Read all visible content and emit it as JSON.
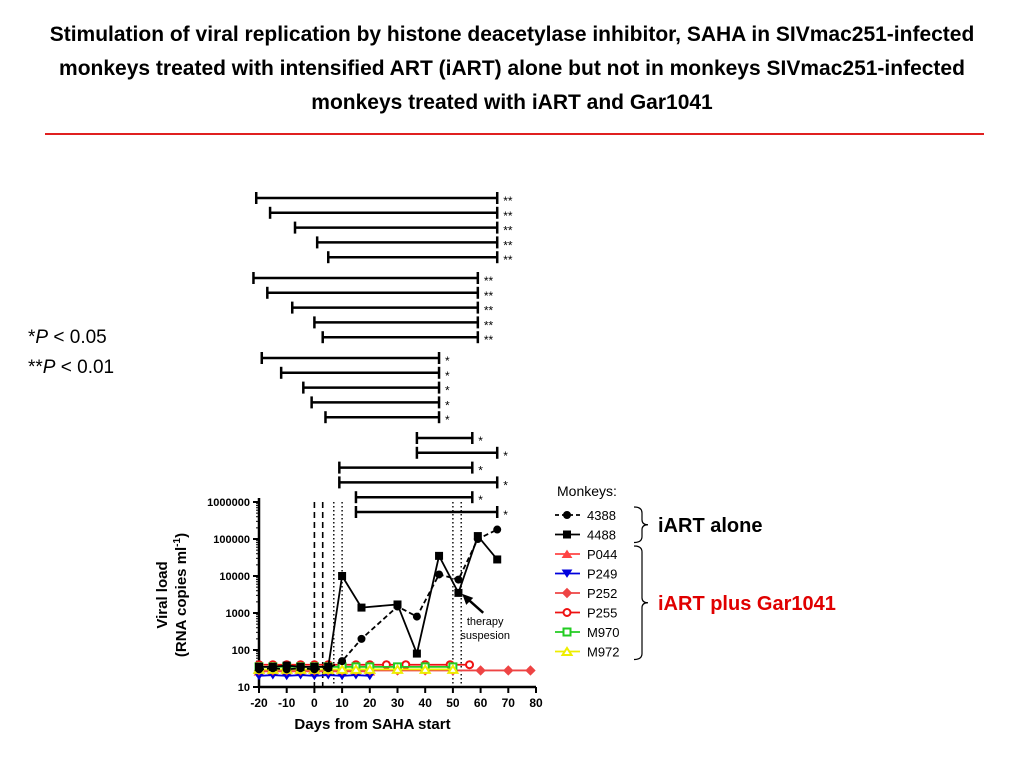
{
  "title": "Stimulation of viral replication by histone deacetylase inhibitor, SAHA in SIVmac251-infected monkeys treated with intensified ART (iART) alone but not in monkeys SIVmac251-infected monkeys treated with iART and Gar1041",
  "colors": {
    "rule": "#e02020",
    "iart_alone_label": "#000000",
    "iart_plus_label": "#e00000"
  },
  "significance_key": {
    "single": {
      "stars": "*",
      "p": "P",
      "rest": " < 0.05"
    },
    "double": {
      "stars": "**",
      "p": "P",
      "rest": " < 0.01"
    }
  },
  "chart_data": {
    "type": "line",
    "xlabel": "Days from SAHA start",
    "ylabel": "Viral load",
    "ylabel_units": "(RNA copies ml",
    "ylabel_sup": "-1",
    "ylabel_close": ")",
    "xlim": [
      -20,
      80
    ],
    "ylim": [
      10,
      1000000
    ],
    "y_scale": "log",
    "xticks": [
      -20,
      -10,
      0,
      10,
      20,
      30,
      40,
      50,
      60,
      70,
      80
    ],
    "xtick_labels": [
      "-20",
      "-10",
      "0",
      "10",
      "20",
      "30",
      "40",
      "50",
      "60",
      "70",
      "80"
    ],
    "yticks": [
      10,
      100,
      1000,
      10000,
      100000,
      1000000
    ],
    "ytick_labels": [
      "10",
      "100",
      "1000",
      "10000",
      "100000",
      "1000000"
    ],
    "dashed_vlines": [
      0,
      3
    ],
    "dotted_vlines": [
      7,
      10,
      50,
      53
    ],
    "legend_title": "Monkeys:",
    "series": [
      {
        "name": "4388",
        "color": "#000000",
        "marker": "circle",
        "dash": "dashed",
        "x": [
          -20,
          -15,
          -10,
          -5,
          0,
          5,
          10,
          17,
          30,
          37,
          45,
          52,
          59,
          66
        ],
        "y": [
          30,
          32,
          30,
          32,
          30,
          32,
          50,
          200,
          1500,
          800,
          11000,
          8000,
          100000,
          180000
        ]
      },
      {
        "name": "4488",
        "color": "#000000",
        "marker": "square",
        "dash": "solid",
        "x": [
          -20,
          -15,
          -10,
          -5,
          0,
          5,
          10,
          17,
          30,
          37,
          45,
          52,
          59,
          66
        ],
        "y": [
          35,
          35,
          38,
          35,
          35,
          35,
          10000,
          1400,
          1700,
          80,
          35000,
          3500,
          120000,
          28000
        ]
      },
      {
        "name": "P044",
        "color": "#ff4444",
        "marker": "triangle-up",
        "dash": "solid",
        "x": [
          -20,
          -15,
          -10,
          -5,
          0,
          5,
          10,
          15,
          20
        ],
        "y": [
          26,
          27,
          26,
          27,
          26,
          27,
          26,
          27,
          26
        ]
      },
      {
        "name": "P249",
        "color": "#0000dd",
        "marker": "triangle-down",
        "dash": "solid",
        "x": [
          -20,
          -15,
          -10,
          -5,
          0,
          5,
          10,
          15,
          20
        ],
        "y": [
          20,
          21,
          20,
          21,
          20,
          21,
          20,
          21,
          20
        ]
      },
      {
        "name": "P252",
        "color": "#ee4444",
        "marker": "diamond",
        "dash": "solid",
        "x": [
          -20,
          -15,
          -10,
          -5,
          0,
          5,
          10,
          15,
          20,
          30,
          40,
          50,
          60,
          70,
          78
        ],
        "y": [
          28,
          28,
          28,
          28,
          28,
          28,
          28,
          28,
          28,
          28,
          28,
          28,
          28,
          28,
          28
        ]
      },
      {
        "name": "P255",
        "color": "#ee1111",
        "marker": "circle-open",
        "dash": "solid",
        "x": [
          -20,
          -15,
          -10,
          -5,
          0,
          5,
          10,
          15,
          20,
          26,
          33,
          40,
          49,
          56
        ],
        "y": [
          40,
          40,
          40,
          40,
          40,
          40,
          40,
          40,
          40,
          40,
          40,
          40,
          40,
          40
        ]
      },
      {
        "name": "M970",
        "color": "#22cc22",
        "marker": "square-open",
        "dash": "solid",
        "x": [
          -20,
          -15,
          -10,
          -5,
          0,
          5,
          10,
          15,
          20,
          30,
          40,
          50
        ],
        "y": [
          35,
          35,
          35,
          35,
          35,
          35,
          35,
          35,
          35,
          35,
          35,
          35
        ]
      },
      {
        "name": "M972",
        "color": "#eeee00",
        "marker": "triangle-up-open",
        "dash": "solid",
        "x": [
          -20,
          -15,
          -10,
          -5,
          0,
          5,
          10,
          15,
          20,
          30,
          40,
          50
        ],
        "y": [
          30,
          30,
          30,
          30,
          30,
          30,
          30,
          30,
          30,
          30,
          30,
          30
        ]
      }
    ],
    "group_labels": [
      {
        "text": "iART alone",
        "members": [
          "4388",
          "4488"
        ],
        "color": "#000000"
      },
      {
        "text": "iART plus Gar1041",
        "members": [
          "P044",
          "P249",
          "P252",
          "P255",
          "M970",
          "M972"
        ],
        "color": "#e00000"
      }
    ],
    "annotation": {
      "lines": [
        "therapy",
        "suspesion"
      ],
      "x": 53,
      "y": 3500
    },
    "significance_brackets": [
      {
        "start": -21,
        "end": 66,
        "label": "**"
      },
      {
        "start": -16,
        "end": 66,
        "label": "**"
      },
      {
        "start": -7,
        "end": 66,
        "label": "**"
      },
      {
        "start": 1,
        "end": 66,
        "label": "**"
      },
      {
        "start": 5,
        "end": 66,
        "label": "**"
      },
      {
        "start": -22,
        "end": 59,
        "label": "**"
      },
      {
        "start": -17,
        "end": 59,
        "label": "**"
      },
      {
        "start": -8,
        "end": 59,
        "label": "**"
      },
      {
        "start": 0,
        "end": 59,
        "label": "**"
      },
      {
        "start": 3,
        "end": 59,
        "label": "**"
      },
      {
        "start": -19,
        "end": 45,
        "label": "*"
      },
      {
        "start": -12,
        "end": 45,
        "label": "*"
      },
      {
        "start": -4,
        "end": 45,
        "label": "*"
      },
      {
        "start": -1,
        "end": 45,
        "label": "*"
      },
      {
        "start": 4,
        "end": 45,
        "label": "*"
      },
      {
        "start": 37,
        "end": 57,
        "label": "*"
      },
      {
        "start": 37,
        "end": 66,
        "label": "*"
      },
      {
        "start": 9,
        "end": 57,
        "label": "*"
      },
      {
        "start": 9,
        "end": 66,
        "label": "*"
      },
      {
        "start": 15,
        "end": 57,
        "label": "*"
      },
      {
        "start": 15,
        "end": 66,
        "label": "*"
      }
    ]
  }
}
